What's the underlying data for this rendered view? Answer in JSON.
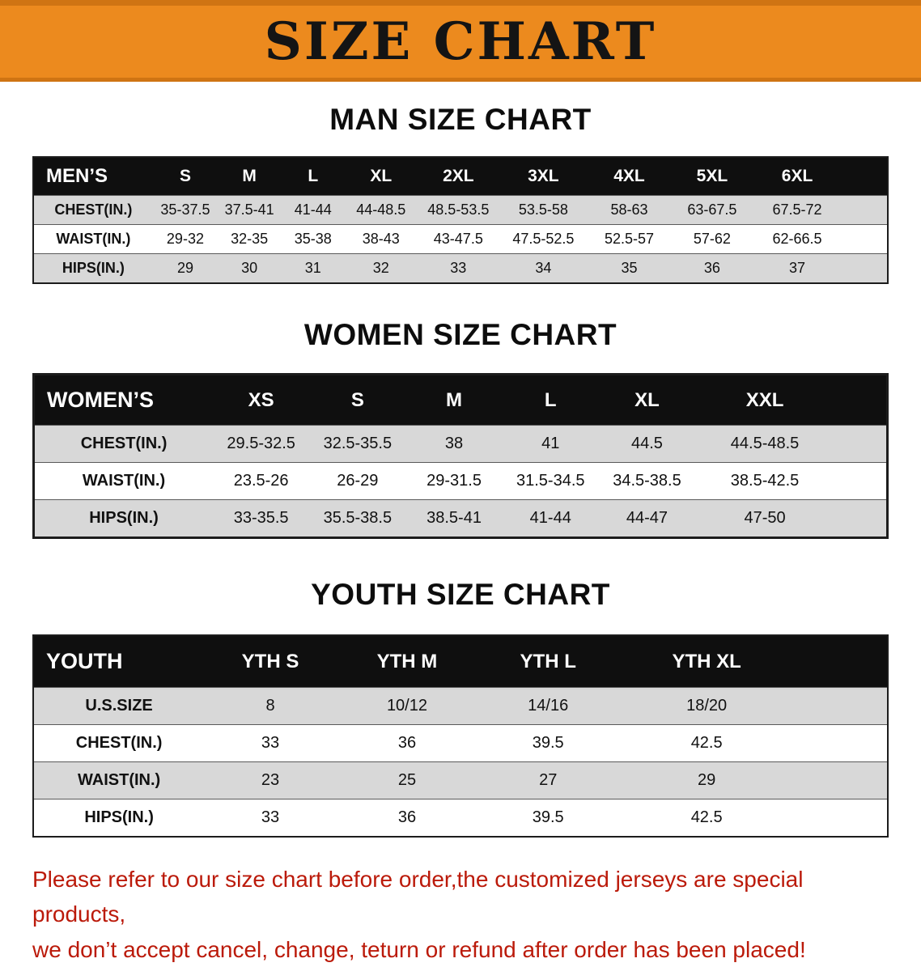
{
  "banner": {
    "title": "SIZE CHART"
  },
  "colors": {
    "banner-bg": "#ec8a1e",
    "banner-border": "#cf7413",
    "header-bg": "#0f0f0f",
    "header-text": "#ffffff",
    "row-gray": "#d8d8d8",
    "row-white": "#ffffff",
    "footer-red": "#bb1a0a",
    "text-black": "#111111"
  },
  "sections": [
    {
      "id": "men",
      "heading": "MAN SIZE CHART",
      "table": {
        "header": [
          "MEN’S",
          "S",
          "M",
          "L",
          "XL",
          "2XL",
          "3XL",
          "4XL",
          "5XL",
          "6XL"
        ],
        "rows": [
          {
            "label": "CHEST(IN.)",
            "values": [
              "35-37.5",
              "37.5-41",
              "41-44",
              "44-48.5",
              "48.5-53.5",
              "53.5-58",
              "58-63",
              "63-67.5",
              "67.5-72"
            ]
          },
          {
            "label": "WAIST(IN.)",
            "values": [
              "29-32",
              "32-35",
              "35-38",
              "38-43",
              "43-47.5",
              "47.5-52.5",
              "52.5-57",
              "57-62",
              "62-66.5"
            ]
          },
          {
            "label": "HIPS(IN.)",
            "values": [
              "29",
              "30",
              "31",
              "32",
              "33",
              "34",
              "35",
              "36",
              "37"
            ]
          }
        ]
      }
    },
    {
      "id": "women",
      "heading": "WOMEN SIZE CHART",
      "table": {
        "header": [
          "WOMEN’S",
          "XS",
          "S",
          "M",
          "L",
          "XL",
          "XXL"
        ],
        "rows": [
          {
            "label": "CHEST(IN.)",
            "values": [
              "29.5-32.5",
              "32.5-35.5",
              "38",
              "41",
              "44.5",
              "44.5-48.5"
            ]
          },
          {
            "label": "WAIST(IN.)",
            "values": [
              "23.5-26",
              "26-29",
              "29-31.5",
              "31.5-34.5",
              "34.5-38.5",
              "38.5-42.5"
            ]
          },
          {
            "label": "HIPS(IN.)",
            "values": [
              "33-35.5",
              "35.5-38.5",
              "38.5-41",
              "41-44",
              "44-47",
              "47-50"
            ]
          }
        ]
      }
    },
    {
      "id": "youth",
      "heading": "YOUTH SIZE CHART",
      "table": {
        "header": [
          "YOUTH",
          "YTH S",
          "YTH M",
          "YTH L",
          "YTH XL"
        ],
        "rows": [
          {
            "label": "U.S.SIZE",
            "values": [
              "8",
              "10/12",
              "14/16",
              "18/20"
            ]
          },
          {
            "label": "CHEST(IN.)",
            "values": [
              "33",
              "36",
              "39.5",
              "42.5"
            ]
          },
          {
            "label": "WAIST(IN.)",
            "values": [
              "23",
              "25",
              "27",
              "29"
            ]
          },
          {
            "label": "HIPS(IN.)",
            "values": [
              "33",
              "36",
              "39.5",
              "42.5"
            ]
          }
        ]
      }
    }
  ],
  "disclaimer": {
    "line1": "Please refer to our size chart before order,the customized jerseys are special products,",
    "line2": "we don’t accept cancel, change, teturn or refund after order has been placed!"
  }
}
